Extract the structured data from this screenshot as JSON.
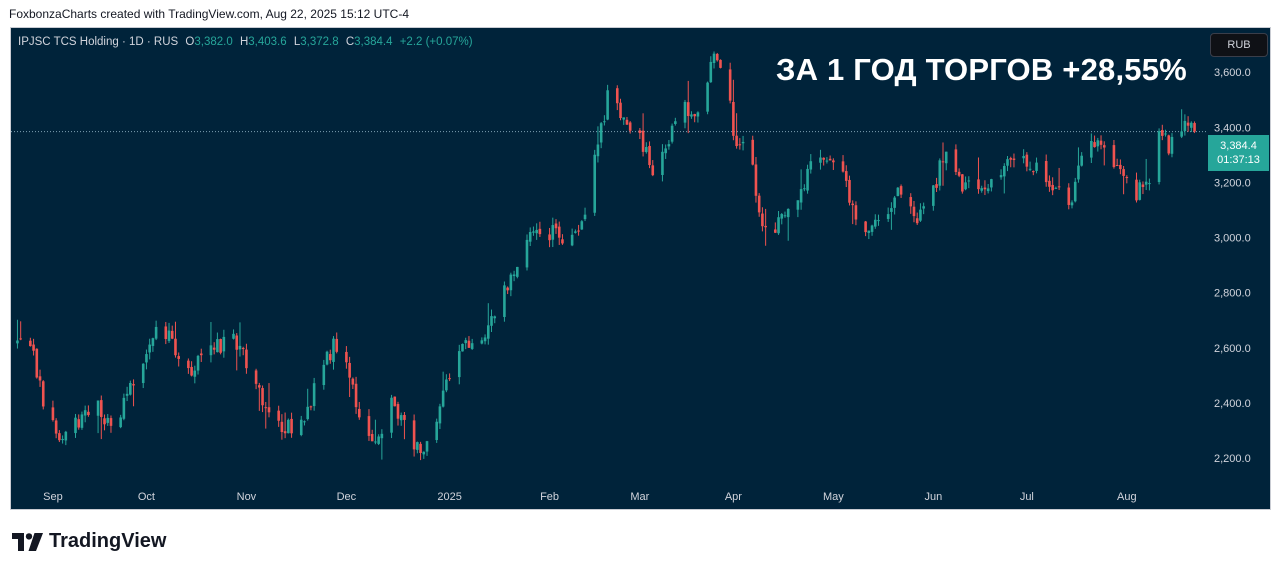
{
  "header": {
    "attribution": "FoxbonzaCharts created with TradingView.com, Aug 22, 2025 15:12 UTC-4"
  },
  "legend": {
    "symbol": "IPJSC TCS Holding · 1D · RUS",
    "o_label": "O",
    "o_value": "3,382.0",
    "h_label": "H",
    "h_value": "3,403.6",
    "l_label": "L",
    "l_value": "3,372.8",
    "c_label": "C",
    "c_value": "3,384.4",
    "change": "+2.2 (+0.07%)"
  },
  "toolbar": {
    "currency": "RUB"
  },
  "annotation": {
    "headline": "ЗА 1 ГОД ТОРГОВ +28,55%"
  },
  "price_tag": {
    "price": "3,384.4",
    "countdown": "01:37:13"
  },
  "footer": {
    "brand": "TradingView"
  },
  "colors": {
    "background": "#00233a",
    "up": "#26a69a",
    "down": "#ef5350",
    "text": "#d1d4dc"
  },
  "chart_data": {
    "type": "candlestick",
    "title": "",
    "ylim": [
      2110,
      3760
    ],
    "yticks": [
      2200,
      2400,
      2600,
      2800,
      3000,
      3200,
      3400,
      3600
    ],
    "ytick_labels": [
      "2,200.0",
      "2,400.0",
      "2,600.0",
      "2,800.0",
      "3,000.0",
      "3,200.0",
      "3,400.0",
      "3,600.0"
    ],
    "xticks": [
      {
        "label": "Sep",
        "date": "2024-09-02"
      },
      {
        "label": "Oct",
        "date": "2024-10-01"
      },
      {
        "label": "Nov",
        "date": "2024-11-01"
      },
      {
        "label": "Dec",
        "date": "2024-12-02"
      },
      {
        "label": "2025",
        "date": "2025-01-03"
      },
      {
        "label": "Feb",
        "date": "2025-02-03"
      },
      {
        "label": "Mar",
        "date": "2025-03-03"
      },
      {
        "label": "Apr",
        "date": "2025-04-01"
      },
      {
        "label": "May",
        "date": "2025-05-02"
      },
      {
        "label": "Jun",
        "date": "2025-06-02"
      },
      {
        "label": "Jul",
        "date": "2025-07-01"
      },
      {
        "label": "Aug",
        "date": "2025-08-01"
      }
    ],
    "last_price": 3384.4,
    "anchors": [
      [
        "2024-08-22",
        2620
      ],
      [
        "2024-08-27",
        2560
      ],
      [
        "2024-08-30",
        2420
      ],
      [
        "2024-09-04",
        2250
      ],
      [
        "2024-09-10",
        2330
      ],
      [
        "2024-09-16",
        2390
      ],
      [
        "2024-09-20",
        2290
      ],
      [
        "2024-09-26",
        2450
      ],
      [
        "2024-10-01",
        2570
      ],
      [
        "2024-10-04",
        2710
      ],
      [
        "2024-10-09",
        2620
      ],
      [
        "2024-10-14",
        2520
      ],
      [
        "2024-10-21",
        2580
      ],
      [
        "2024-10-28",
        2650
      ],
      [
        "2024-11-01",
        2560
      ],
      [
        "2024-11-06",
        2420
      ],
      [
        "2024-11-11",
        2330
      ],
      [
        "2024-11-15",
        2300
      ],
      [
        "2024-11-20",
        2360
      ],
      [
        "2024-11-25",
        2560
      ],
      [
        "2024-11-29",
        2620
      ],
      [
        "2024-12-03",
        2480
      ],
      [
        "2024-12-06",
        2350
      ],
      [
        "2024-12-11",
        2260
      ],
      [
        "2024-12-16",
        2390
      ],
      [
        "2024-12-20",
        2330
      ],
      [
        "2024-12-25",
        2220
      ],
      [
        "2024-12-28",
        2300
      ],
      [
        "2025-01-06",
        2600
      ],
      [
        "2025-01-13",
        2640
      ],
      [
        "2025-01-18",
        2760
      ],
      [
        "2025-01-24",
        2900
      ],
      [
        "2025-01-28",
        3020
      ],
      [
        "2025-02-03",
        3020
      ],
      [
        "2025-02-08",
        3000
      ],
      [
        "2025-02-13",
        3060
      ],
      [
        "2025-02-19",
        3390
      ],
      [
        "2025-02-21",
        3520
      ],
      [
        "2025-02-26",
        3440
      ],
      [
        "2025-03-04",
        3340
      ],
      [
        "2025-03-08",
        3230
      ],
      [
        "2025-03-13",
        3390
      ],
      [
        "2025-03-17",
        3460
      ],
      [
        "2025-03-21",
        3440
      ],
      [
        "2025-03-25",
        3640
      ],
      [
        "2025-03-29",
        3620
      ],
      [
        "2025-04-02",
        3320
      ],
      [
        "2025-04-06",
        3330
      ],
      [
        "2025-04-10",
        3030
      ],
      [
        "2025-04-14",
        3020
      ],
      [
        "2025-04-20",
        3140
      ],
      [
        "2025-04-25",
        3260
      ],
      [
        "2025-04-30",
        3310
      ],
      [
        "2025-05-05",
        3250
      ],
      [
        "2025-05-10",
        3020
      ],
      [
        "2025-05-16",
        3080
      ],
      [
        "2025-05-22",
        3160
      ],
      [
        "2025-05-28",
        3040
      ],
      [
        "2025-06-02",
        3180
      ],
      [
        "2025-06-06",
        3320
      ],
      [
        "2025-06-10",
        3210
      ],
      [
        "2025-06-16",
        3150
      ],
      [
        "2025-06-22",
        3230
      ],
      [
        "2025-06-28",
        3280
      ],
      [
        "2025-07-03",
        3260
      ],
      [
        "2025-07-09",
        3200
      ],
      [
        "2025-07-14",
        3110
      ],
      [
        "2025-07-18",
        3310
      ],
      [
        "2025-07-24",
        3360
      ],
      [
        "2025-07-29",
        3260
      ],
      [
        "2025-08-03",
        3150
      ],
      [
        "2025-08-07",
        3190
      ],
      [
        "2025-08-11",
        3360
      ],
      [
        "2025-08-15",
        3330
      ],
      [
        "2025-08-19",
        3400
      ],
      [
        "2025-08-22",
        3384
      ]
    ]
  }
}
